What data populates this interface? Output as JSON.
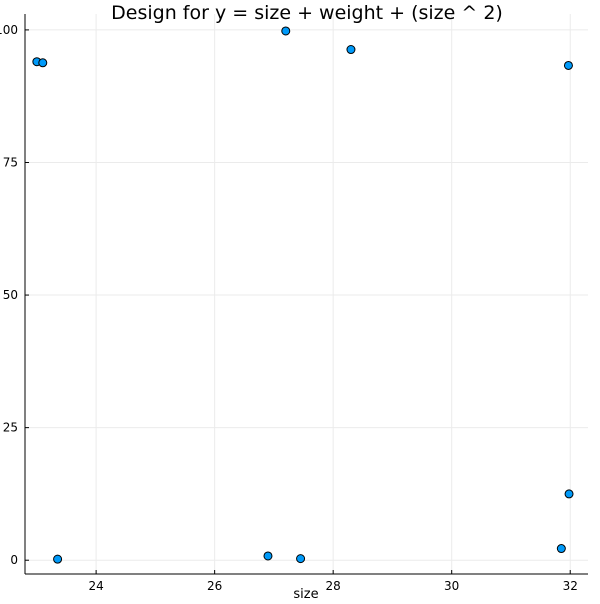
{
  "chart_data": {
    "type": "scatter",
    "title": "Design for y = size + weight + (size ^ 2)",
    "xlabel": "size",
    "ylabel": "",
    "xlim": [
      22.8,
      32.3
    ],
    "ylim": [
      -2.6,
      103
    ],
    "xticks": [
      24,
      26,
      28,
      30,
      32
    ],
    "yticks": [
      0,
      25,
      50,
      75,
      100
    ],
    "xtick_labels": [
      "24",
      "26",
      "28",
      "30",
      "32"
    ],
    "ytick_labels": [
      "0",
      "25",
      "50",
      "75",
      "100"
    ],
    "grid": true,
    "legend": "none",
    "marker_color": "#009AF9",
    "series": [
      {
        "x": [
          23.0,
          23.1,
          23.35,
          26.9,
          27.2,
          27.45,
          28.3,
          31.85,
          31.97,
          31.98
        ],
        "y": [
          94.0,
          93.8,
          0.2,
          0.8,
          99.8,
          0.3,
          96.3,
          2.2,
          93.3,
          12.5
        ]
      }
    ]
  },
  "colors": {
    "axis": "#000000",
    "grid": "#ebebeb",
    "marker_edge": "#000000",
    "background": "#ffffff"
  }
}
